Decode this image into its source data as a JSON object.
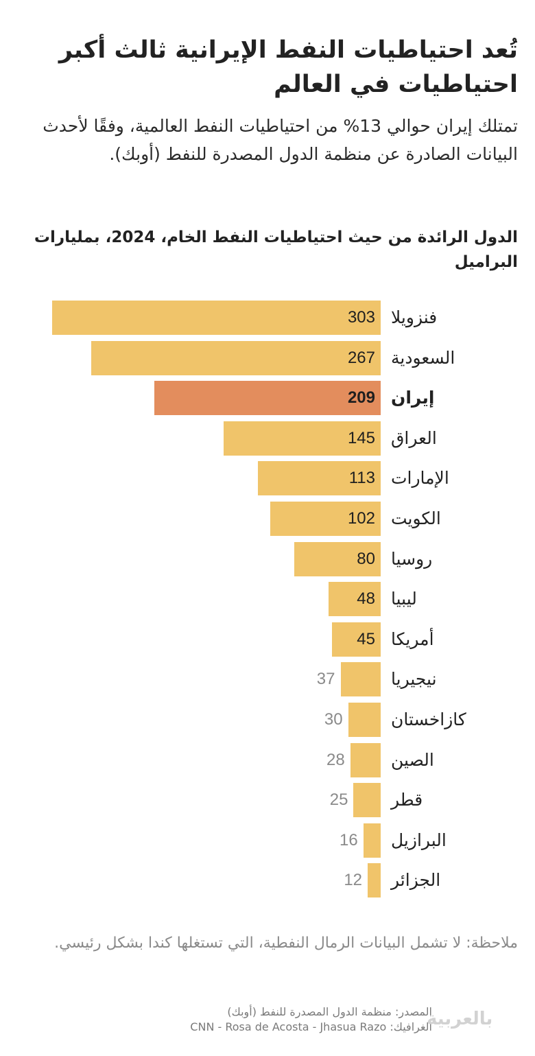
{
  "header": {
    "title": "تُعد احتياطيات النفط الإيرانية ثالث أكبر احتياطيات في العالم",
    "subtitle": "تمتلك إيران حوالي 13% من احتياطيات النفط العالمية، وفقًا لأحدث البيانات الصادرة عن منظمة الدول المصدرة للنفط (أوبك)."
  },
  "chart_data": {
    "type": "bar",
    "orientation": "horizontal",
    "title": "الدول الرائدة من حيث احتياطيات النفط الخام، 2024، بمليارات البراميل",
    "categories": [
      "فنزويلا",
      "السعودية",
      "إيران",
      "العراق",
      "الإمارات",
      "الكويت",
      "روسيا",
      "ليبيا",
      "أمريكا",
      "نيجيريا",
      "كازاخستان",
      "الصين",
      "قطر",
      "البرازيل",
      "الجزائر"
    ],
    "values": [
      303,
      267,
      209,
      145,
      113,
      102,
      80,
      48,
      45,
      37,
      30,
      28,
      25,
      16,
      12
    ],
    "highlight": "إيران",
    "colors": {
      "bar": "#f0c46a",
      "highlight": "#e38d5d",
      "outside_label": "#8a8a8a"
    },
    "grid": false
  },
  "note": "ملاحظة: لا تشمل البيانات الرمال النفطية، التي تستغلها كندا بشكل رئيسي.",
  "footer": {
    "source": "المصدر: منظمة الدول المصدرة للنفط (أوبك)",
    "credits": "الغرافيك: CNN - Rosa de Acosta - Jhasua Razo",
    "logo": "CNN بالعربية"
  }
}
